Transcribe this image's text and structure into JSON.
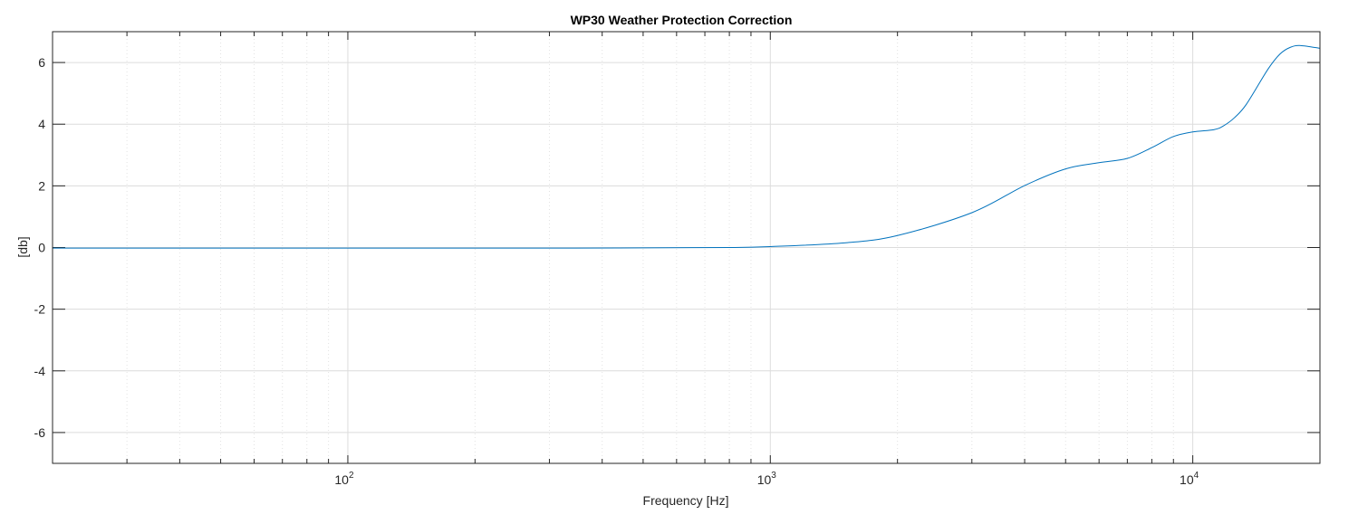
{
  "chart_data": {
    "type": "line",
    "title": "WP30 Weather Protection Correction",
    "xlabel": "Frequency [Hz]",
    "ylabel": "[db]",
    "xscale": "log",
    "xlim": [
      20,
      20000
    ],
    "ylim": [
      -7,
      7
    ],
    "yticks": [
      -6,
      -4,
      -2,
      0,
      2,
      4,
      6
    ],
    "xticks": [
      {
        "value": 100,
        "base": "10",
        "exp": "2"
      },
      {
        "value": 1000,
        "base": "10",
        "exp": "3"
      },
      {
        "value": 10000,
        "base": "10",
        "exp": "4"
      }
    ],
    "grid": true,
    "color": "#0072BD",
    "series": [
      {
        "name": "WP30",
        "x": [
          20,
          100,
          300,
          500,
          800,
          1000,
          1500,
          2000,
          3000,
          4000,
          5000,
          6000,
          7000,
          8000,
          9000,
          10000,
          11200,
          11800,
          12550,
          13400,
          15060,
          16070,
          17000,
          18000,
          20000
        ],
        "y": [
          -0.02,
          -0.02,
          -0.02,
          -0.01,
          0.0,
          0.03,
          0.15,
          0.39,
          1.13,
          2.01,
          2.55,
          2.75,
          2.89,
          3.24,
          3.6,
          3.75,
          3.82,
          3.94,
          4.21,
          4.65,
          5.78,
          6.27,
          6.49,
          6.55,
          6.46
        ]
      }
    ]
  }
}
